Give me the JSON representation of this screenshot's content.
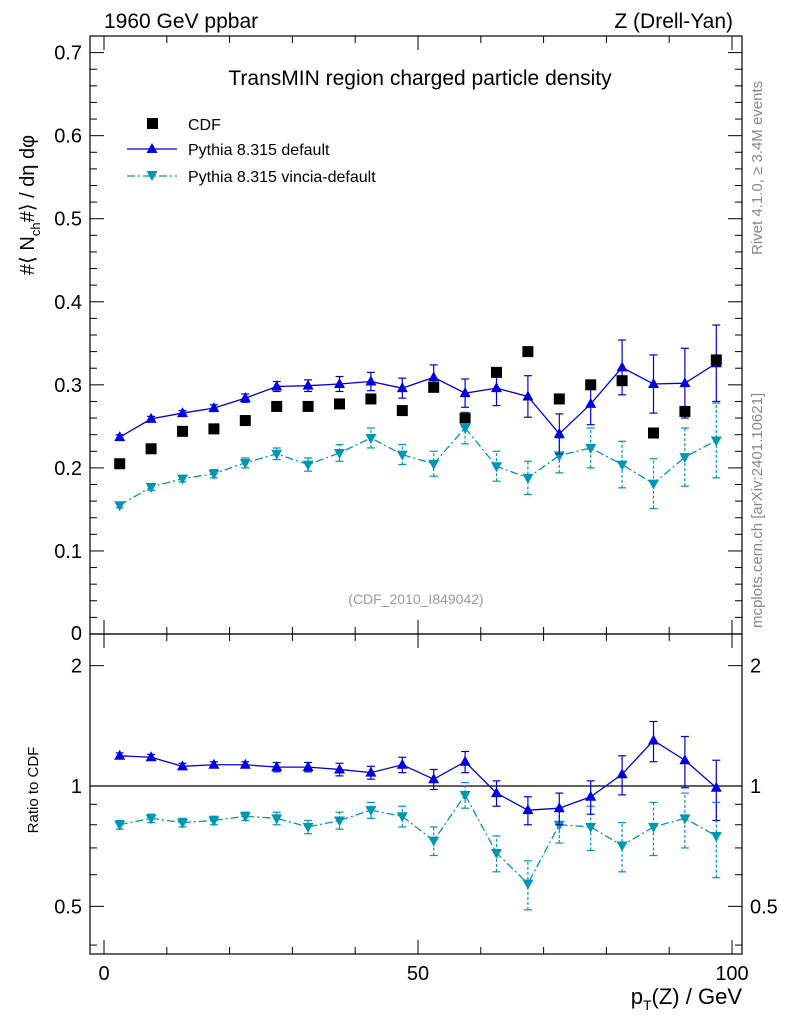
{
  "header": {
    "left": "1960 GeV ppbar",
    "right": "Z (Drell-Yan)"
  },
  "side_labels": {
    "rivet": "Rivet 4.1.0, ≥ 3.4M events",
    "mcplots": "mcplots.cern.ch [arXiv:2401.10621]"
  },
  "chart_data": {
    "type": "scatter",
    "title": "TransMIN region charged particle density",
    "analysis_id": "(CDF_2010_I849042)",
    "xlabel_main": "p",
    "xlabel_sub": "T",
    "xlabel_rest": "(Z) / GeV",
    "ylabel": "#⟨ N",
    "ylabel_sub": "ch",
    "ylabel_rest": "#⟩ / dη dφ",
    "ratio_ylabel": "Ratio to CDF",
    "xlim": [
      0,
      100
    ],
    "ylim": [
      0,
      0.72
    ],
    "ratio_ylim": [
      0.38,
      2.4
    ],
    "x_ticks": [
      "0",
      "50",
      "100"
    ],
    "y_ticks": [
      "0.1",
      "0.2",
      "0.3",
      "0.4",
      "0.5",
      "0.6",
      "0.7"
    ],
    "ratio_ticks": [
      "0.5",
      "1",
      "2"
    ],
    "x": [
      2.5,
      7.5,
      12.5,
      17.5,
      22.5,
      27.5,
      32.5,
      37.5,
      42.5,
      47.5,
      52.5,
      57.5,
      62.5,
      67.5,
      72.5,
      77.5,
      82.5,
      87.5,
      92.5,
      97.5
    ],
    "legend_position": "top-left",
    "series": [
      {
        "name": "CDF",
        "color": "#000000",
        "style": "markers",
        "values": [
          0.205,
          0.223,
          0.244,
          0.247,
          0.257,
          0.274,
          0.274,
          0.277,
          0.283,
          0.269,
          0.297,
          0.26,
          0.315,
          0.34,
          0.283,
          0.3,
          0.305,
          0.242,
          0.268,
          0.33
        ]
      },
      {
        "name": "Pythia 8.315 default",
        "color": "#0000dd",
        "style": "solid",
        "values": [
          0.237,
          0.259,
          0.266,
          0.272,
          0.284,
          0.298,
          0.299,
          0.301,
          0.304,
          0.296,
          0.309,
          0.29,
          0.296,
          0.286,
          0.241,
          0.277,
          0.321,
          0.301,
          0.302,
          0.326
        ],
        "errors": [
          0.003,
          0.003,
          0.003,
          0.004,
          0.005,
          0.006,
          0.007,
          0.009,
          0.011,
          0.012,
          0.015,
          0.017,
          0.021,
          0.025,
          0.024,
          0.025,
          0.033,
          0.035,
          0.042,
          0.046
        ],
        "ratio": [
          1.19,
          1.18,
          1.12,
          1.13,
          1.13,
          1.115,
          1.115,
          1.1,
          1.08,
          1.13,
          1.04,
          1.15,
          0.96,
          0.87,
          0.88,
          0.94,
          1.07,
          1.3,
          1.16,
          0.99
        ],
        "ratio_errors": [
          0.02,
          0.02,
          0.02,
          0.02,
          0.02,
          0.03,
          0.03,
          0.04,
          0.04,
          0.05,
          0.06,
          0.07,
          0.07,
          0.07,
          0.08,
          0.09,
          0.12,
          0.15,
          0.17,
          0.17
        ]
      },
      {
        "name": "Pythia 8.315 vincia-default",
        "color": "#0096b4",
        "style": "dashdot",
        "values": [
          0.155,
          0.177,
          0.187,
          0.193,
          0.206,
          0.217,
          0.204,
          0.218,
          0.236,
          0.216,
          0.205,
          0.248,
          0.202,
          0.188,
          0.215,
          0.224,
          0.204,
          0.181,
          0.213,
          0.233
        ],
        "errors": [
          0.003,
          0.004,
          0.004,
          0.005,
          0.006,
          0.007,
          0.008,
          0.01,
          0.012,
          0.012,
          0.015,
          0.019,
          0.018,
          0.02,
          0.021,
          0.024,
          0.028,
          0.03,
          0.035,
          0.045
        ],
        "ratio": [
          0.8,
          0.83,
          0.81,
          0.82,
          0.84,
          0.83,
          0.79,
          0.82,
          0.87,
          0.84,
          0.73,
          0.95,
          0.68,
          0.57,
          0.8,
          0.79,
          0.71,
          0.79,
          0.83,
          0.75
        ],
        "ratio_errors": [
          0.02,
          0.02,
          0.02,
          0.02,
          0.02,
          0.03,
          0.03,
          0.04,
          0.04,
          0.05,
          0.06,
          0.07,
          0.07,
          0.08,
          0.08,
          0.1,
          0.1,
          0.12,
          0.13,
          0.16
        ]
      }
    ]
  }
}
